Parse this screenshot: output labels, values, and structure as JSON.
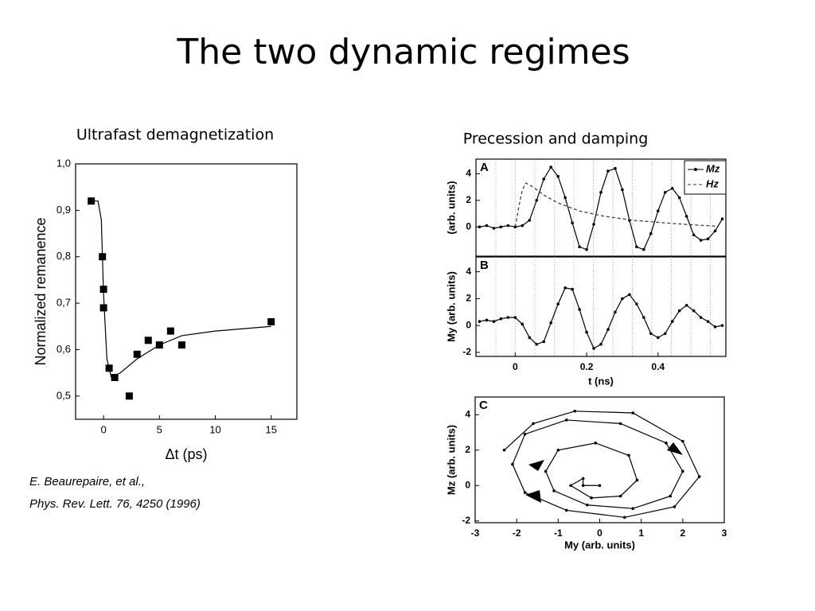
{
  "title": "The two dynamic regimes",
  "citation": [
    "E. Beaurepaire, et al.,",
    "Phys. Rev. Lett. 76, 4250 (1996)"
  ],
  "chart_data": [
    {
      "type": "scatter",
      "title": "Ultrafast demagnetization",
      "xlabel": "Δt (ps)",
      "ylabel": "Normalized remanence",
      "xlim": [
        -2.5,
        17.3
      ],
      "ylim": [
        0.45,
        1.0
      ],
      "xticks": [
        0,
        5,
        10,
        15
      ],
      "yticks": [
        {
          "value": 0.5,
          "label": "0,5"
        },
        {
          "value": 0.6,
          "label": "0,6"
        },
        {
          "value": 0.7,
          "label": "0,7"
        },
        {
          "value": 0.8,
          "label": "0,8"
        },
        {
          "value": 0.9,
          "label": "0,9"
        },
        {
          "value": 1.0,
          "label": "1,0"
        }
      ],
      "series": [
        {
          "color": "#000000",
          "marker": "square",
          "x": [
            -1.1,
            -0.1,
            0,
            0,
            0.5,
            1,
            2.3,
            3,
            4,
            5,
            6,
            7,
            15
          ],
          "values": [
            0.92,
            0.8,
            0.73,
            0.69,
            0.56,
            0.54,
            0.5,
            0.59,
            0.62,
            0.61,
            0.64,
            0.61,
            0.66
          ]
        },
        {
          "color": "#000000",
          "marker": "none",
          "x": [
            -1.1,
            -0.5,
            -0.2,
            0,
            0.3,
            0.7,
            1.5,
            3,
            5,
            7,
            10,
            15
          ],
          "values": [
            0.92,
            0.92,
            0.88,
            0.72,
            0.58,
            0.54,
            0.55,
            0.58,
            0.61,
            0.63,
            0.64,
            0.65
          ]
        }
      ]
    },
    {
      "type": "line",
      "title": "Precession and damping",
      "panel_label": "A",
      "ylabel": "(arb. units)",
      "xlim": [
        -0.11,
        0.59
      ],
      "ylim": [
        -2.2,
        5.1
      ],
      "yticks": [
        0,
        2,
        4
      ],
      "legend": "upper right",
      "series": [
        {
          "name": "Mz",
          "color": "#000000",
          "marker": "circle",
          "dash": false,
          "x": [
            -0.1,
            -0.08,
            -0.06,
            -0.04,
            -0.02,
            0,
            0.02,
            0.04,
            0.06,
            0.08,
            0.1,
            0.12,
            0.14,
            0.16,
            0.18,
            0.2,
            0.22,
            0.24,
            0.26,
            0.28,
            0.3,
            0.32,
            0.34,
            0.36,
            0.38,
            0.4,
            0.42,
            0.44,
            0.46,
            0.48,
            0.5,
            0.52,
            0.54,
            0.56,
            0.58
          ],
          "values": [
            0,
            0.1,
            -0.1,
            0,
            0.1,
            0,
            0.1,
            0.5,
            2.0,
            3.6,
            4.5,
            3.8,
            2.2,
            0.3,
            -1.5,
            -1.7,
            0.2,
            2.6,
            4.2,
            4.4,
            2.8,
            0.5,
            -1.5,
            -1.7,
            -0.5,
            1.2,
            2.6,
            2.9,
            2.2,
            0.8,
            -0.6,
            -1.0,
            -0.9,
            -0.3,
            0.6
          ]
        },
        {
          "name": "Hz",
          "color": "#333333",
          "marker": "none",
          "dash": true,
          "x": [
            0,
            0.01,
            0.02,
            0.03,
            0.05,
            0.08,
            0.12,
            0.18,
            0.25,
            0.33,
            0.42,
            0.5,
            0.57
          ],
          "values": [
            0,
            1.5,
            2.8,
            3.3,
            3.0,
            2.4,
            1.8,
            1.2,
            0.8,
            0.5,
            0.3,
            0.15,
            0.05
          ]
        }
      ]
    },
    {
      "type": "line",
      "panel_label": "B",
      "ylabel": "My (arb. units)",
      "xlabel": "t (ns)",
      "xlim": [
        -0.11,
        0.59
      ],
      "ylim": [
        -2.3,
        5.1
      ],
      "xticks": [
        0,
        0.2,
        0.4
      ],
      "yticks": [
        -2,
        0,
        2,
        4
      ],
      "series": [
        {
          "color": "#000000",
          "marker": "circle",
          "dash": false,
          "x": [
            -0.1,
            -0.08,
            -0.06,
            -0.04,
            -0.02,
            0,
            0.02,
            0.04,
            0.06,
            0.08,
            0.1,
            0.12,
            0.14,
            0.16,
            0.18,
            0.2,
            0.22,
            0.24,
            0.26,
            0.28,
            0.3,
            0.32,
            0.34,
            0.36,
            0.38,
            0.4,
            0.42,
            0.44,
            0.46,
            0.48,
            0.5,
            0.52,
            0.54,
            0.56,
            0.58
          ],
          "values": [
            0.3,
            0.4,
            0.3,
            0.5,
            0.6,
            0.6,
            0.1,
            -0.9,
            -1.4,
            -1.2,
            0.2,
            1.6,
            2.8,
            2.7,
            1.2,
            -0.5,
            -1.7,
            -1.4,
            -0.3,
            1.0,
            2.0,
            2.3,
            1.6,
            0.6,
            -0.6,
            -0.9,
            -0.6,
            0.3,
            1.1,
            1.5,
            1.1,
            0.6,
            0.3,
            -0.1,
            0
          ]
        }
      ]
    },
    {
      "type": "line",
      "panel_label": "C",
      "ylabel": "Mz (arb. units)",
      "xlabel": "My (arb. units)",
      "xlim": [
        -3,
        3
      ],
      "ylim": [
        -2.1,
        5
      ],
      "xticks": [
        -3,
        -2,
        -1,
        0,
        1,
        2,
        3
      ],
      "yticks": [
        -2,
        0,
        2,
        4
      ],
      "series": [
        {
          "color": "#000000",
          "marker": "circle",
          "dash": false,
          "x": [
            0,
            -0.4,
            -0.4,
            -0.7,
            -0.2,
            0.5,
            0.9,
            0.7,
            -0.1,
            -1.0,
            -1.3,
            -1.1,
            -0.3,
            0.8,
            1.7,
            2.0,
            1.6,
            0.5,
            -0.8,
            -1.8,
            -2.1,
            -1.8,
            -0.8,
            0.6,
            1.8,
            2.4,
            2.0,
            0.8,
            -0.6,
            -1.6,
            -2.3
          ],
          "values": [
            0,
            0,
            0.4,
            0,
            -0.7,
            -0.6,
            0.3,
            1.7,
            2.4,
            2.0,
            0.8,
            -0.3,
            -1.1,
            -1.3,
            -0.6,
            0.8,
            2.4,
            3.5,
            3.7,
            2.9,
            1.2,
            -0.4,
            -1.4,
            -1.8,
            -1.2,
            0.5,
            2.5,
            4.1,
            4.2,
            3.5,
            2.0
          ]
        }
      ]
    }
  ]
}
